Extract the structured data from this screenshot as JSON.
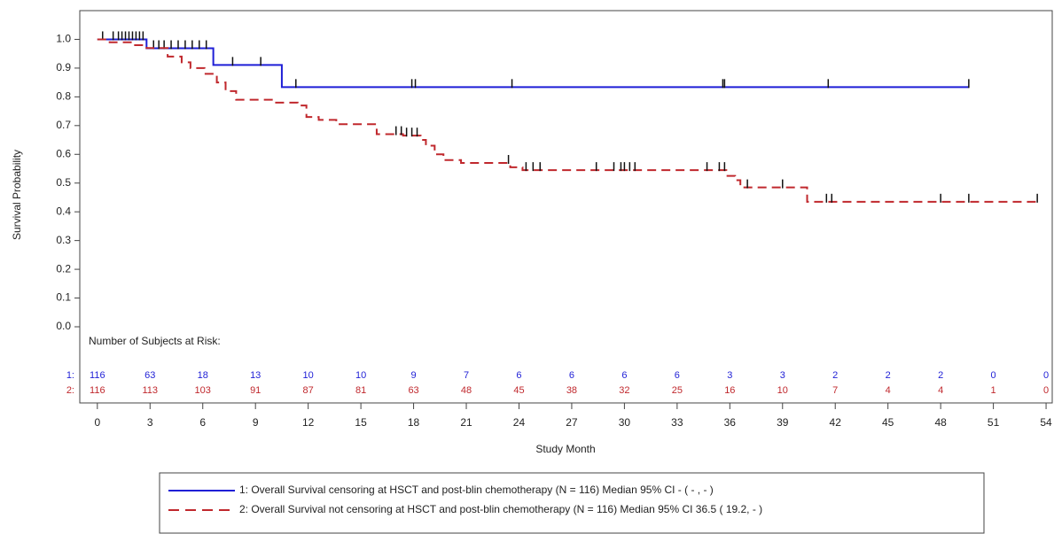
{
  "chart_data": {
    "type": "step",
    "ylabel": "Survival Probability",
    "xlabel": "Study Month",
    "xlim": [
      -1,
      54.35
    ],
    "ylim": [
      -0.265,
      1.1
    ],
    "xticks": [
      0,
      3,
      6,
      9,
      12,
      15,
      18,
      21,
      24,
      27,
      30,
      33,
      36,
      39,
      42,
      45,
      48,
      51,
      54
    ],
    "yticks": [
      {
        "value": 0,
        "label": "0.0"
      },
      0.1,
      0.2,
      0.3,
      0.4,
      0.5,
      0.6,
      0.7,
      0.8,
      0.9,
      {
        "value": 1,
        "label": "1.0"
      }
    ],
    "series": [
      {
        "name": "1: Overall Survival censoring at HSCT and post-blin chemotherapy (N = 116) Median 95% CI - ( - , - )",
        "color": "#1f1fd6",
        "dash": false,
        "x": [
          0,
          2.8,
          6.6,
          10.5,
          49.6
        ],
        "values": [
          1.0,
          0.969,
          0.911,
          0.834,
          0.834
        ],
        "censored": {
          "x": [
            0.3,
            0.9,
            1.2,
            1.4,
            1.6,
            1.8,
            2.0,
            2.2,
            2.4,
            2.6,
            3.2,
            3.5,
            3.8,
            4.2,
            4.6,
            5.0,
            5.4,
            5.8,
            6.2,
            7.7,
            9.3,
            11.3,
            17.9,
            18.1,
            23.6,
            35.6,
            35.7,
            41.6,
            49.6
          ],
          "y": [
            1.0,
            1.0,
            1.0,
            1.0,
            1.0,
            1.0,
            1.0,
            1.0,
            1.0,
            1.0,
            0.969,
            0.969,
            0.969,
            0.969,
            0.969,
            0.969,
            0.969,
            0.969,
            0.969,
            0.911,
            0.911,
            0.834,
            0.834,
            0.834,
            0.834,
            0.834,
            0.834,
            0.834,
            0.834
          ]
        }
      },
      {
        "name": "2: Overall Survival not censoring at HSCT and post-blin chemotherapy (N = 116) Median 95% CI 36.5 ( 19.2, - )",
        "color": "#c0282d",
        "dash": true,
        "x": [
          0,
          0.7,
          2.0,
          2.8,
          4.0,
          4.8,
          5.3,
          6.1,
          6.8,
          7.3,
          7.9,
          10.1,
          11.4,
          11.9,
          12.6,
          13.6,
          15.9,
          17.4,
          18.4,
          18.7,
          19.2,
          19.7,
          20.7,
          23.5,
          24.2,
          35.8,
          36.3,
          36.6,
          40.4,
          53.5
        ],
        "values": [
          1.0,
          0.99,
          0.98,
          0.97,
          0.94,
          0.92,
          0.9,
          0.88,
          0.85,
          0.82,
          0.79,
          0.78,
          0.77,
          0.73,
          0.72,
          0.705,
          0.67,
          0.665,
          0.65,
          0.63,
          0.6,
          0.58,
          0.57,
          0.555,
          0.545,
          0.525,
          0.51,
          0.485,
          0.435,
          0.435
        ],
        "censored": {
          "x": [
            17.0,
            17.3,
            17.6,
            17.9,
            18.2,
            23.4,
            24.4,
            24.8,
            25.2,
            28.4,
            29.4,
            29.8,
            30.0,
            30.3,
            30.6,
            34.7,
            35.4,
            35.7,
            37.0,
            39.0,
            41.5,
            41.8,
            48.0,
            49.6,
            53.5
          ],
          "y": [
            0.67,
            0.67,
            0.665,
            0.665,
            0.665,
            0.57,
            0.545,
            0.545,
            0.545,
            0.545,
            0.545,
            0.545,
            0.545,
            0.545,
            0.545,
            0.545,
            0.545,
            0.545,
            0.485,
            0.485,
            0.435,
            0.435,
            0.435,
            0.435,
            0.435
          ]
        }
      }
    ],
    "risk_table": {
      "title": "Number of Subjects at Risk:",
      "rows": [
        {
          "label": "1:",
          "color": "#1f1fd6",
          "values": [
            116,
            63,
            18,
            13,
            10,
            10,
            9,
            7,
            6,
            6,
            6,
            6,
            3,
            3,
            2,
            2,
            2,
            0,
            0
          ]
        },
        {
          "label": "2:",
          "color": "#c0282d",
          "values": [
            116,
            113,
            103,
            91,
            87,
            81,
            63,
            48,
            45,
            38,
            32,
            25,
            16,
            10,
            7,
            4,
            4,
            1,
            0
          ]
        }
      ]
    }
  }
}
